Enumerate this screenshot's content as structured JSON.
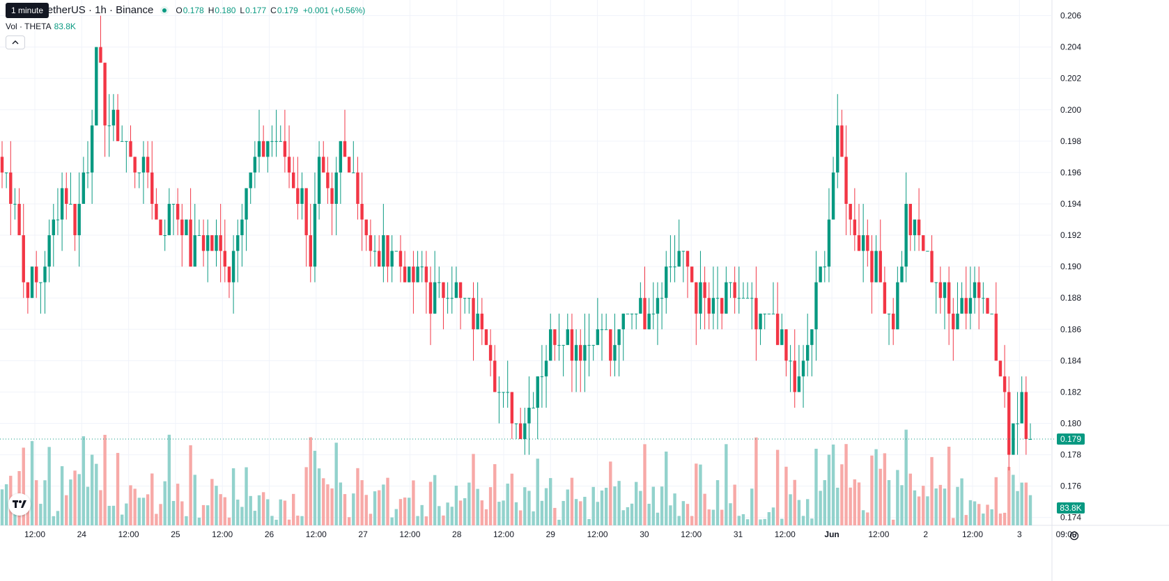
{
  "tooltip": "1 minute",
  "legend": {
    "symbol": "Token / TetherUS · 1h · Binance",
    "open_label": "O",
    "open": "0.178",
    "high_label": "H",
    "high": "0.180",
    "low_label": "L",
    "low": "0.177",
    "close_label": "C",
    "close": "0.179",
    "change": "+0.001 (+0.56%)"
  },
  "volume_legend": {
    "label": "Vol · THETA",
    "value": "83.8K"
  },
  "price_badge": "0.179",
  "volume_badge": "83.8K",
  "colors": {
    "up": "#089981",
    "down": "#f23645",
    "up_vol": "#92d2cc",
    "down_vol": "#f7a9a7",
    "grid": "#f0f3fa"
  },
  "chart_data": {
    "type": "candlestick",
    "interval": "1h",
    "y_axis": {
      "ticks": [
        "0.206",
        "0.204",
        "0.202",
        "0.200",
        "0.198",
        "0.196",
        "0.194",
        "0.192",
        "0.190",
        "0.188",
        "0.186",
        "0.184",
        "0.182",
        "0.180",
        "0.178",
        "0.176",
        "0.174"
      ],
      "range": [
        0.1735,
        0.207
      ]
    },
    "x_axis": {
      "labels": [
        "12:00",
        "24",
        "12:00",
        "25",
        "12:00",
        "26",
        "12:00",
        "27",
        "12:00",
        "28",
        "12:00",
        "29",
        "12:00",
        "30",
        "12:00",
        "31",
        "12:00",
        "Jun",
        "12:00",
        "2",
        "12:00",
        "3",
        "09:00"
      ]
    },
    "last_price": 0.179,
    "anchors": [
      [
        0,
        0.196
      ],
      [
        3,
        0.195
      ],
      [
        5,
        0.189
      ],
      [
        9,
        0.189
      ],
      [
        14,
        0.195
      ],
      [
        17,
        0.193
      ],
      [
        20,
        0.197
      ],
      [
        22,
        0.203
      ],
      [
        24,
        0.2
      ],
      [
        26,
        0.199
      ],
      [
        30,
        0.197
      ],
      [
        34,
        0.196
      ],
      [
        37,
        0.192
      ],
      [
        40,
        0.194
      ],
      [
        44,
        0.191
      ],
      [
        47,
        0.192
      ],
      [
        53,
        0.19
      ],
      [
        56,
        0.194
      ],
      [
        60,
        0.197
      ],
      [
        63,
        0.198
      ],
      [
        66,
        0.197
      ],
      [
        70,
        0.194
      ],
      [
        72,
        0.191
      ],
      [
        74,
        0.196
      ],
      [
        77,
        0.193
      ],
      [
        79,
        0.198
      ],
      [
        82,
        0.196
      ],
      [
        85,
        0.192
      ],
      [
        87,
        0.19
      ],
      [
        89,
        0.191
      ],
      [
        92,
        0.191
      ],
      [
        95,
        0.189
      ],
      [
        98,
        0.19
      ],
      [
        100,
        0.188
      ],
      [
        104,
        0.189
      ],
      [
        107,
        0.188
      ],
      [
        110,
        0.187
      ],
      [
        113,
        0.186
      ],
      [
        115,
        0.183
      ],
      [
        118,
        0.181
      ],
      [
        122,
        0.18
      ],
      [
        126,
        0.184
      ],
      [
        130,
        0.186
      ],
      [
        135,
        0.185
      ],
      [
        140,
        0.186
      ],
      [
        143,
        0.184
      ],
      [
        146,
        0.188
      ],
      [
        150,
        0.187
      ],
      [
        154,
        0.189
      ],
      [
        158,
        0.191
      ],
      [
        162,
        0.188
      ],
      [
        166,
        0.187
      ],
      [
        172,
        0.188
      ],
      [
        177,
        0.186
      ],
      [
        180,
        0.187
      ],
      [
        183,
        0.184
      ],
      [
        186,
        0.182
      ],
      [
        188,
        0.185
      ],
      [
        190,
        0.188
      ],
      [
        192,
        0.191
      ],
      [
        195,
        0.198
      ],
      [
        198,
        0.193
      ],
      [
        202,
        0.191
      ],
      [
        205,
        0.189
      ],
      [
        208,
        0.187
      ],
      [
        211,
        0.193
      ],
      [
        215,
        0.191
      ],
      [
        218,
        0.189
      ],
      [
        221,
        0.187
      ],
      [
        225,
        0.188
      ],
      [
        229,
        0.189
      ],
      [
        231,
        0.186
      ],
      [
        233,
        0.183
      ],
      [
        235,
        0.179
      ],
      [
        238,
        0.182
      ],
      [
        240,
        0.179
      ]
    ],
    "volume_scale": {
      "note": "relative volume per bar, drawn in lower pane"
    }
  }
}
